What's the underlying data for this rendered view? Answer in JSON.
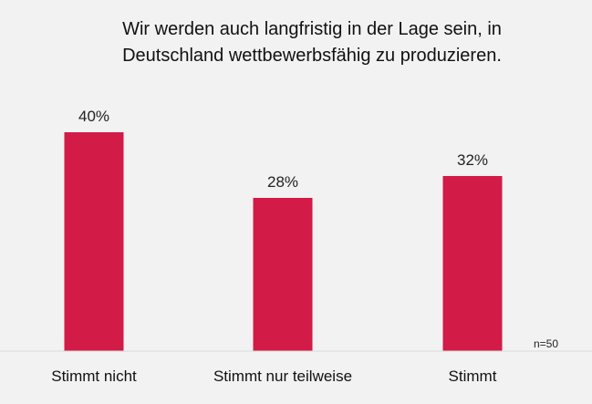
{
  "title_lines": [
    "Wir werden auch langfristig in der Lage sein, in",
    "Deutschland wettbewerbsfähig zu produzieren."
  ],
  "sample_note": "n=50",
  "colors": {
    "bar": "#d21b47",
    "background": "#f2f2f2",
    "baseline": "#d9d9d9"
  },
  "chart_data": {
    "type": "bar",
    "title": "Wir werden auch langfristig in der Lage sein, in Deutschland wettbewerbsfähig zu produzieren.",
    "categories": [
      "Stimmt nicht",
      "Stimmt nur teilweise",
      "Stimmt"
    ],
    "values": [
      40,
      28,
      32
    ],
    "value_labels": [
      "40%",
      "28%",
      "32%"
    ],
    "unit": "%",
    "ylim": [
      0,
      50
    ],
    "grid": false,
    "legend": "none",
    "annotation": "n=50"
  }
}
